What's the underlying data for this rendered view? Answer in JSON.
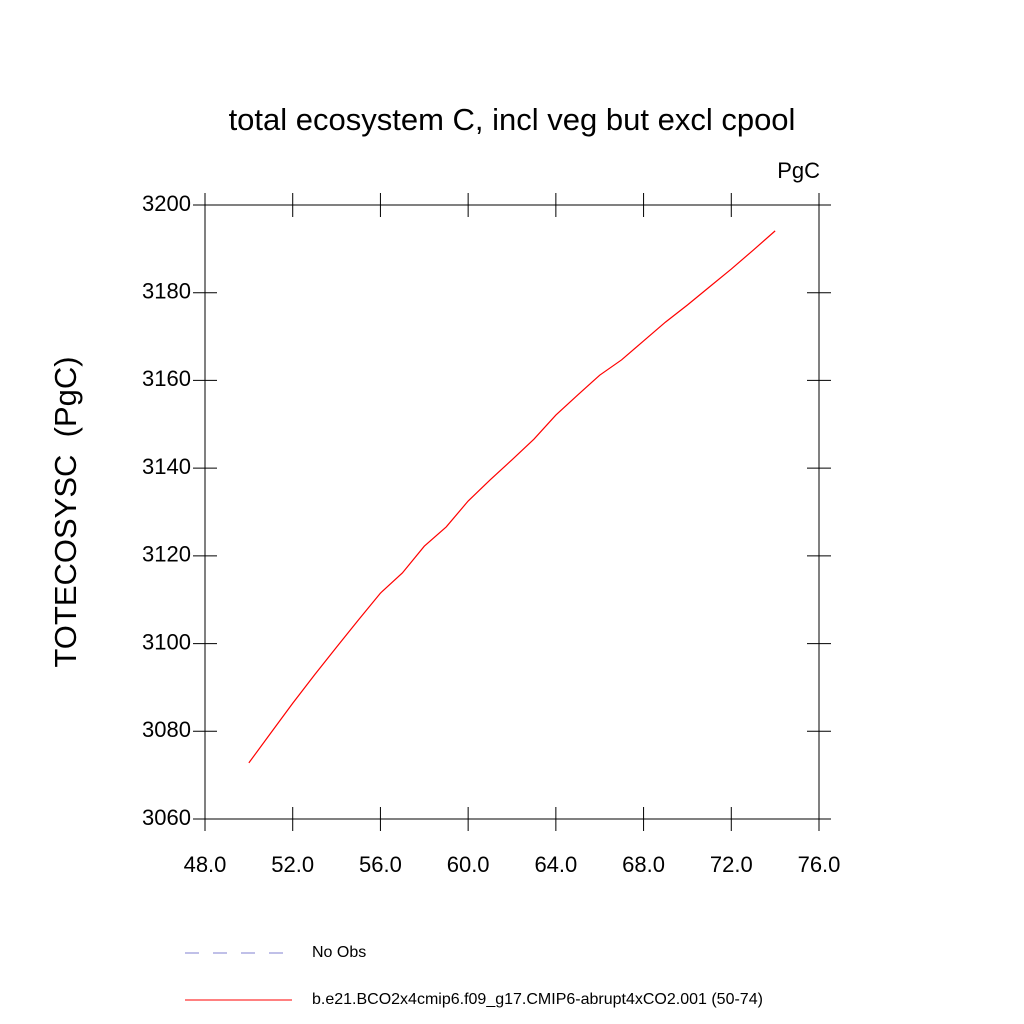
{
  "chart_data": {
    "type": "line",
    "title": "total ecosystem C, incl veg but excl cpool",
    "units": "PgC",
    "ylabel": "TOTECOSYSC  (PgC)",
    "x": [
      50,
      51,
      52,
      53,
      54,
      55,
      56,
      57,
      58,
      59,
      60,
      61,
      62,
      63,
      64,
      65,
      66,
      67,
      68,
      69,
      70,
      71,
      72,
      73,
      74
    ],
    "series": [
      {
        "name": "b.e21.BCO2x4cmip6.f09_g17.CMIP6-abrupt4xCO2.001 (50-74)",
        "color": "#ff0000",
        "values": [
          3072.8,
          3079.6,
          3086.4,
          3092.9,
          3099.2,
          3105.4,
          3111.5,
          3116.1,
          3122.2,
          3126.6,
          3132.5,
          3137.3,
          3141.9,
          3146.6,
          3152.1,
          3156.7,
          3161.2,
          3164.7,
          3169.0,
          3173.3,
          3177.2,
          3181.3,
          3185.4,
          3189.7,
          3194.1
        ]
      }
    ],
    "reference_legend": [
      {
        "name": "No Obs",
        "color": "#8080d0",
        "dashed": true
      }
    ],
    "xlim": [
      48,
      76
    ],
    "xticks": [
      {
        "value": 48,
        "label": "48.0"
      },
      {
        "value": 52,
        "label": "52.0"
      },
      {
        "value": 56,
        "label": "56.0"
      },
      {
        "value": 60,
        "label": "60.0"
      },
      {
        "value": 64,
        "label": "64.0"
      },
      {
        "value": 68,
        "label": "68.0"
      },
      {
        "value": 72,
        "label": "72.0"
      },
      {
        "value": 76,
        "label": "76.0"
      }
    ],
    "ylim": [
      3060,
      3200
    ],
    "yticks": [
      3060,
      3080,
      3100,
      3120,
      3140,
      3160,
      3180,
      3200
    ],
    "grid": false
  }
}
